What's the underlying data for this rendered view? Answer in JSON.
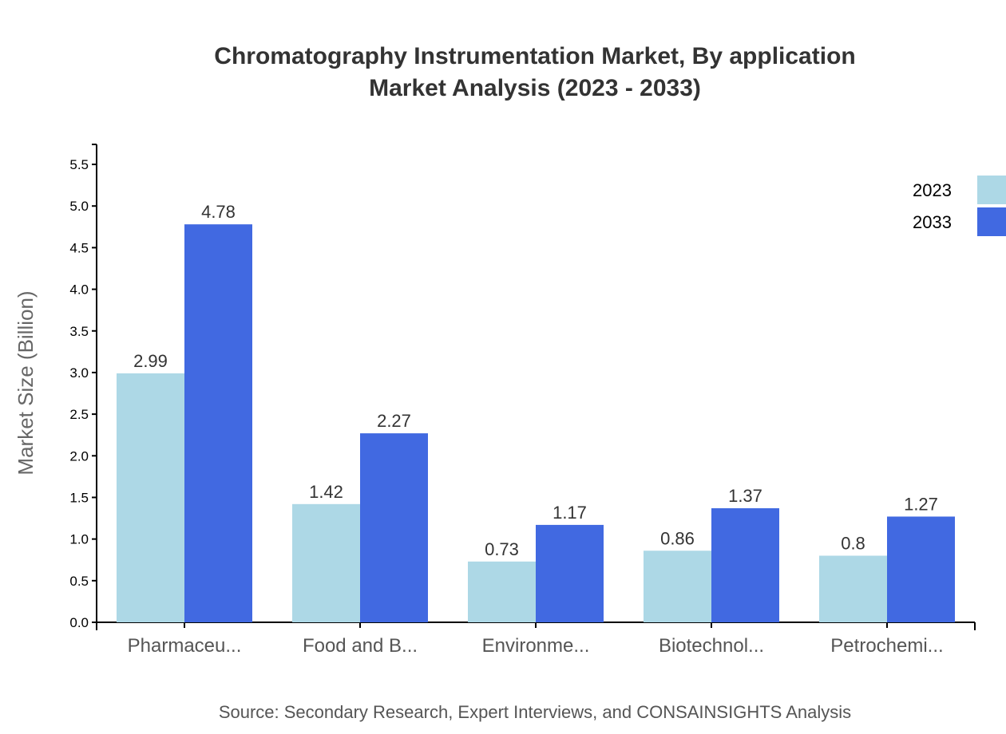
{
  "chart_data": {
    "type": "bar",
    "title": "Chromatography Instrumentation Market, By application",
    "subtitle": "Market Analysis (2023 - 2033)",
    "xlabel": "",
    "ylabel": "Market Size (Billion)",
    "categories": [
      "Pharmaceu...",
      "Food and B...",
      "Environme...",
      "Biotechnol...",
      "Petrochemi..."
    ],
    "series": [
      {
        "name": "2023",
        "color": "#add8e6",
        "values": [
          2.99,
          1.42,
          0.73,
          0.86,
          0.8
        ]
      },
      {
        "name": "2033",
        "color": "#4169e1",
        "values": [
          4.78,
          2.27,
          1.17,
          1.37,
          1.27
        ]
      }
    ],
    "ylim": [
      0,
      5.74
    ],
    "yticks": [
      "0.0",
      "0.5",
      "1.0",
      "1.5",
      "2.0",
      "2.5",
      "3.0",
      "3.5",
      "4.0",
      "4.5",
      "5.0",
      "5.5"
    ],
    "grid": false,
    "legend_position": "top-right",
    "source": "Source: Secondary Research, Expert Interviews, and CONSAINSIGHTS Analysis"
  }
}
